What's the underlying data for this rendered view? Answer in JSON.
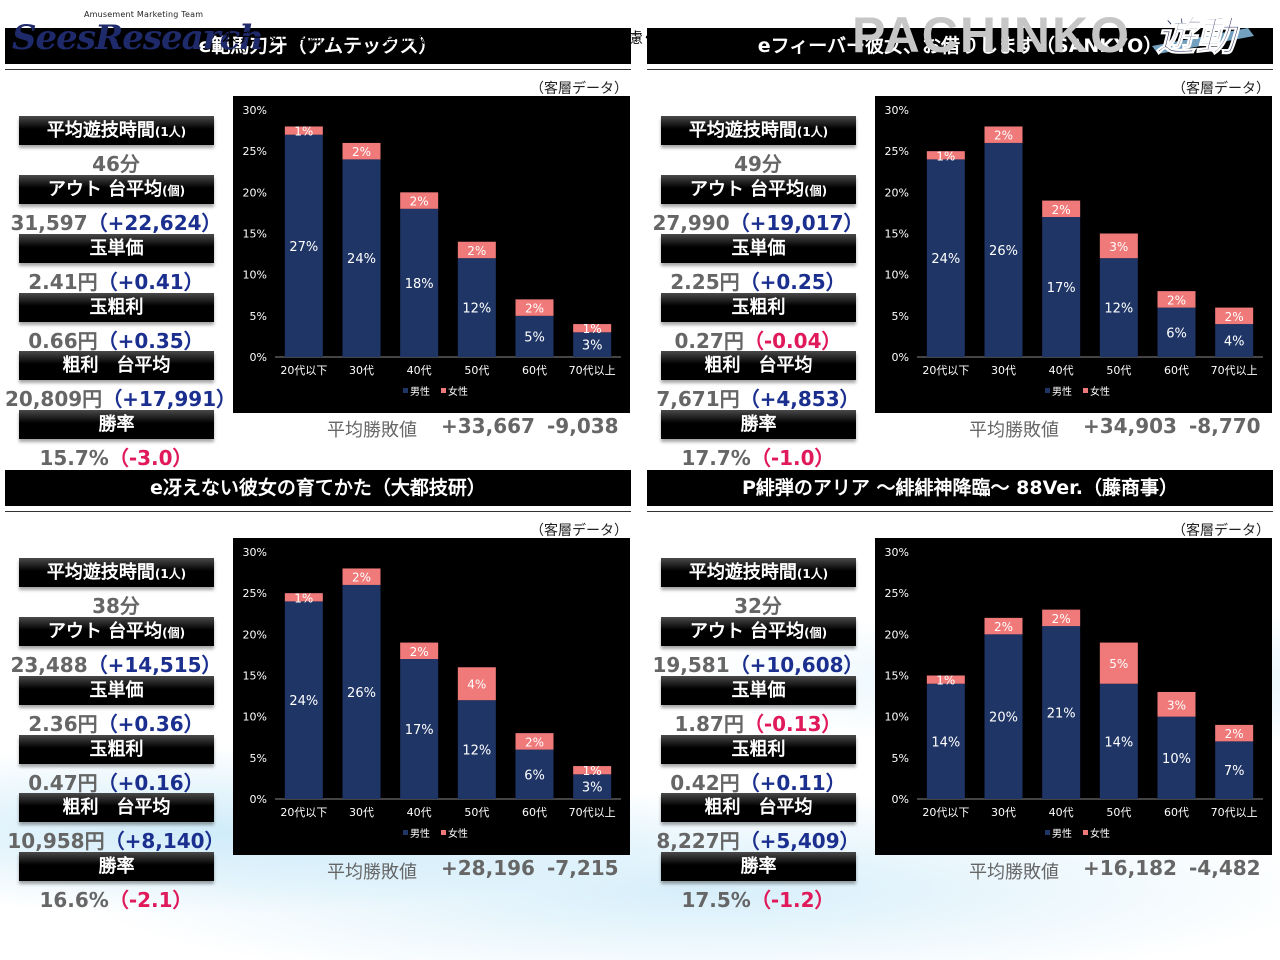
{
  "header": {
    "logo_tagline": "Amusement Marketing Team",
    "logo_word": "SeesResearch",
    "notice": "本データの無断コピー・無断転載・SNS等への情報発信はご遠慮ください。",
    "brand": "PACHINKO",
    "yudo_logo": "遊動"
  },
  "labels": {
    "avg_time": "平均遊技時間",
    "avg_time_suffix": "(1人)",
    "out": "アウト 台平均",
    "out_suffix": "(個)",
    "tama_price": "玉単価",
    "tama_profit": "玉粗利",
    "profit": "粗利　台平均",
    "win_rate": "勝率",
    "kyaku": "（客層データ）",
    "avg_win": "平均勝敗値"
  },
  "panels": [
    {
      "title": "e範馬刃牙（アムテックス）",
      "avg_time": "46分",
      "out": "31,597",
      "out_diff": "（+22,624）",
      "out_neg": false,
      "tama_price": "2.41円",
      "tama_price_diff": "（+0.41）",
      "tama_price_neg": false,
      "tama_profit": "0.66円",
      "tama_profit_diff": "（+0.35）",
      "tama_profit_neg": false,
      "profit": "20,809円",
      "profit_diff": "（+17,991）",
      "profit_neg": false,
      "win_rate": "15.7%",
      "win_rate_diff": "（-3.0）",
      "win_rate_neg": true,
      "avg_win_plus": "+33,667",
      "avg_win_minus": "-9,038",
      "chart_data": {
        "type": "bar",
        "stacked": true,
        "categories": [
          "20代以下",
          "30代",
          "40代",
          "50代",
          "60代",
          "70代以上"
        ],
        "series": [
          {
            "name": "男性",
            "values": [
              27,
              24,
              18,
              12,
              5,
              3
            ],
            "color": "#1f3566"
          },
          {
            "name": "女性",
            "values": [
              1,
              2,
              2,
              2,
              2,
              1
            ],
            "color": "#f07a7a"
          }
        ],
        "yticks": [
          "0%",
          "5%",
          "10%",
          "15%",
          "20%",
          "25%",
          "30%"
        ],
        "ylim": [
          0,
          30
        ],
        "legend": "bottom",
        "grid": false
      }
    },
    {
      "title": "eフィーバー彼女、お借りします（SANKYO）",
      "avg_time": "49分",
      "out": "27,990",
      "out_diff": "（+19,017）",
      "out_neg": false,
      "tama_price": "2.25円",
      "tama_price_diff": "（+0.25）",
      "tama_price_neg": false,
      "tama_profit": "0.27円",
      "tama_profit_diff": "（-0.04）",
      "tama_profit_neg": true,
      "profit": "7,671円",
      "profit_diff": "（+4,853）",
      "profit_neg": false,
      "win_rate": "17.7%",
      "win_rate_diff": "（-1.0）",
      "win_rate_neg": true,
      "avg_win_plus": "+34,903",
      "avg_win_minus": "-8,770",
      "chart_data": {
        "type": "bar",
        "stacked": true,
        "categories": [
          "20代以下",
          "30代",
          "40代",
          "50代",
          "60代",
          "70代以上"
        ],
        "series": [
          {
            "name": "男性",
            "values": [
              24,
              26,
              17,
              12,
              6,
              4
            ],
            "color": "#1f3566"
          },
          {
            "name": "女性",
            "values": [
              1,
              2,
              2,
              3,
              2,
              2
            ],
            "color": "#f07a7a"
          }
        ],
        "yticks": [
          "0%",
          "5%",
          "10%",
          "15%",
          "20%",
          "25%",
          "30%"
        ],
        "ylim": [
          0,
          30
        ],
        "legend": "bottom",
        "grid": false
      }
    },
    {
      "title": "e冴えない彼女の育てかた（大都技研）",
      "avg_time": "38分",
      "out": "23,488",
      "out_diff": "（+14,515）",
      "out_neg": false,
      "tama_price": "2.36円",
      "tama_price_diff": "（+0.36）",
      "tama_price_neg": false,
      "tama_profit": "0.47円",
      "tama_profit_diff": "（+0.16）",
      "tama_profit_neg": false,
      "profit": "10,958円",
      "profit_diff": "（+8,140）",
      "profit_neg": false,
      "win_rate": "16.6%",
      "win_rate_diff": "（-2.1）",
      "win_rate_neg": true,
      "avg_win_plus": "+28,196",
      "avg_win_minus": "-7,215",
      "chart_data": {
        "type": "bar",
        "stacked": true,
        "categories": [
          "20代以下",
          "30代",
          "40代",
          "50代",
          "60代",
          "70代以上"
        ],
        "series": [
          {
            "name": "男性",
            "values": [
              24,
              26,
              17,
              12,
              6,
              3
            ],
            "color": "#1f3566"
          },
          {
            "name": "女性",
            "values": [
              1,
              2,
              2,
              4,
              2,
              1
            ],
            "color": "#f07a7a"
          }
        ],
        "yticks": [
          "0%",
          "5%",
          "10%",
          "15%",
          "20%",
          "25%",
          "30%"
        ],
        "ylim": [
          0,
          30
        ],
        "legend": "bottom",
        "grid": false
      }
    },
    {
      "title": "P緋弾のアリア ～緋緋神降臨～ 88Ver.（藤商事）",
      "avg_time": "32分",
      "out": "19,581",
      "out_diff": "（+10,608）",
      "out_neg": false,
      "tama_price": "1.87円",
      "tama_price_diff": "（-0.13）",
      "tama_price_neg": true,
      "tama_profit": "0.42円",
      "tama_profit_diff": "（+0.11）",
      "tama_profit_neg": false,
      "profit": "8,227円",
      "profit_diff": "（+5,409）",
      "profit_neg": false,
      "win_rate": "17.5%",
      "win_rate_diff": "（-1.2）",
      "win_rate_neg": true,
      "avg_win_plus": "+16,182",
      "avg_win_minus": "-4,482",
      "chart_data": {
        "type": "bar",
        "stacked": true,
        "categories": [
          "20代以下",
          "30代",
          "40代",
          "50代",
          "60代",
          "70代以上"
        ],
        "series": [
          {
            "name": "男性",
            "values": [
              14,
              20,
              21,
              14,
              10,
              7
            ],
            "color": "#1f3566"
          },
          {
            "name": "女性",
            "values": [
              1,
              2,
              2,
              5,
              3,
              2
            ],
            "color": "#f07a7a"
          }
        ],
        "yticks": [
          "0%",
          "5%",
          "10%",
          "15%",
          "20%",
          "25%",
          "30%"
        ],
        "ylim": [
          0,
          30
        ],
        "legend": "bottom",
        "grid": false
      }
    }
  ]
}
